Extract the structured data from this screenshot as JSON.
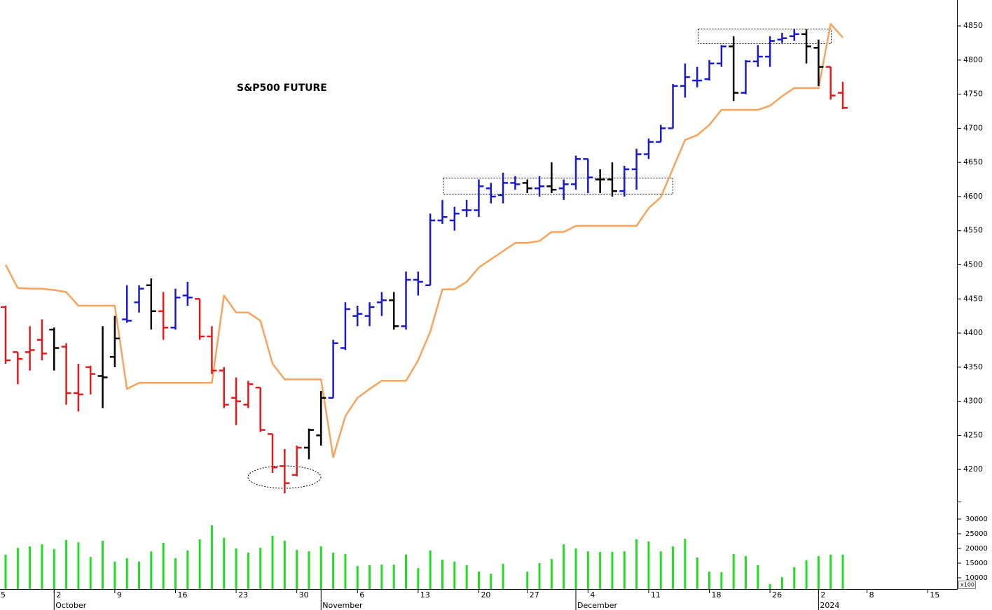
{
  "chart_data": {
    "type": "ohlc",
    "title": "S&P500 FUTURE",
    "x": [
      1,
      2,
      3,
      4,
      5,
      6,
      7,
      8,
      9,
      10,
      11,
      12,
      13,
      14,
      15,
      16,
      17,
      18,
      19,
      20,
      21,
      22,
      23,
      24,
      25,
      26,
      27,
      28,
      29,
      30,
      31,
      32,
      33,
      34,
      35,
      36,
      37,
      38,
      39,
      40,
      41,
      42,
      43,
      44,
      45,
      46,
      47,
      48,
      49,
      50,
      51,
      52,
      53,
      54,
      55,
      56,
      57,
      58,
      59,
      60,
      61,
      62,
      63,
      64,
      65,
      66,
      67,
      68,
      69,
      70
    ],
    "open": [
      4438,
      4372,
      4372,
      4390,
      4405,
      4380,
      4312,
      4350,
      4337,
      4365,
      4420,
      4445,
      4470,
      4432,
      4408,
      4455,
      4450,
      4395,
      4345,
      4305,
      4295,
      4320,
      4252,
      4205,
      4192,
      4232,
      4250,
      4305,
      4378,
      4425,
      4425,
      4445,
      4448,
      4410,
      4478,
      4470,
      4565,
      4565,
      4580,
      4580,
      4612,
      4602,
      4620,
      4620,
      4612,
      4615,
      4612,
      4618,
      4655,
      4625,
      4625,
      4608,
      4640,
      4662,
      4680,
      4700,
      4762,
      4770,
      4772,
      4795,
      4820,
      4752,
      4798,
      4805,
      4830,
      4835,
      4838,
      4818,
      4790,
      4752
    ],
    "high": [
      4440,
      4372,
      4410,
      4420,
      4408,
      4385,
      4355,
      4352,
      4410,
      4425,
      4470,
      4470,
      4480,
      4460,
      4465,
      4475,
      4450,
      4410,
      4350,
      4335,
      4330,
      4320,
      4252,
      4230,
      4235,
      4260,
      4315,
      4390,
      4445,
      4440,
      4445,
      4460,
      4460,
      4490,
      4490,
      4575,
      4595,
      4585,
      4595,
      4625,
      4620,
      4635,
      4630,
      4625,
      4630,
      4650,
      4625,
      4660,
      4655,
      4640,
      4650,
      4645,
      4670,
      4685,
      4705,
      4765,
      4795,
      4790,
      4800,
      4822,
      4835,
      4800,
      4822,
      4835,
      4840,
      4845,
      4845,
      4830,
      4790,
      4768
    ],
    "low": [
      4355,
      4325,
      4345,
      4360,
      4345,
      4295,
      4285,
      4310,
      4290,
      4350,
      4415,
      4430,
      4405,
      4390,
      4405,
      4440,
      4390,
      4340,
      4290,
      4265,
      4290,
      4255,
      4195,
      4165,
      4190,
      4215,
      4235,
      4305,
      4375,
      4410,
      4410,
      4425,
      4405,
      4405,
      4455,
      4470,
      4560,
      4550,
      4570,
      4570,
      4590,
      4590,
      4610,
      4605,
      4600,
      4605,
      4595,
      4610,
      4605,
      4605,
      4600,
      4600,
      4610,
      4655,
      4680,
      4700,
      4745,
      4760,
      4770,
      4790,
      4740,
      4750,
      4790,
      4790,
      4825,
      4828,
      4795,
      4762,
      4742,
      4728
    ],
    "close": [
      4360,
      4362,
      4375,
      4370,
      4378,
      4312,
      4310,
      4340,
      4335,
      4392,
      4418,
      4465,
      4432,
      4408,
      4452,
      4452,
      4395,
      4345,
      4295,
      4300,
      4325,
      4258,
      4203,
      4180,
      4232,
      4258,
      4305,
      4385,
      4435,
      4428,
      4438,
      4448,
      4410,
      4478,
      4475,
      4565,
      4570,
      4575,
      4580,
      4615,
      4600,
      4620,
      4618,
      4612,
      4615,
      4610,
      4618,
      4655,
      4628,
      4625,
      4608,
      4640,
      4662,
      4680,
      4700,
      4762,
      4775,
      4770,
      4795,
      4820,
      4752,
      4798,
      4805,
      4828,
      4832,
      4838,
      4820,
      4790,
      4748,
      4730
    ],
    "colors": [
      "#e31a1c",
      "#e31a1c",
      "#e31a1c",
      "#e31a1c",
      "#000000",
      "#e31a1c",
      "#e31a1c",
      "#e31a1c",
      "#000000",
      "#000000",
      "#1a1acd",
      "#1a1acd",
      "#000000",
      "#e31a1c",
      "#1a1acd",
      "#1a1acd",
      "#e31a1c",
      "#e31a1c",
      "#e31a1c",
      "#e31a1c",
      "#e31a1c",
      "#e31a1c",
      "#e31a1c",
      "#e31a1c",
      "#e31a1c",
      "#000000",
      "#000000",
      "#1a1acd",
      "#1a1acd",
      "#1a1acd",
      "#1a1acd",
      "#1a1acd",
      "#000000",
      "#1a1acd",
      "#1a1acd",
      "#1a1acd",
      "#1a1acd",
      "#1a1acd",
      "#1a1acd",
      "#1a1acd",
      "#1a1acd",
      "#1a1acd",
      "#1a1acd",
      "#000000",
      "#1a1acd",
      "#000000",
      "#1a1acd",
      "#1a1acd",
      "#1a1acd",
      "#000000",
      "#000000",
      "#1a1acd",
      "#1a1acd",
      "#1a1acd",
      "#1a1acd",
      "#1a1acd",
      "#1a1acd",
      "#1a1acd",
      "#1a1acd",
      "#1a1acd",
      "#000000",
      "#1a1acd",
      "#1a1acd",
      "#1a1acd",
      "#1a1acd",
      "#1a1acd",
      "#000000",
      "#000000",
      "#e31a1c",
      "#e31a1c"
    ],
    "stop": {
      "color": "#f7a35c",
      "values": [
        4500,
        4466,
        4465,
        4465,
        4463,
        4460,
        4440,
        4440,
        4440,
        4440,
        4318,
        4327,
        4327,
        4327,
        4327,
        4327,
        4327,
        4327,
        4455,
        4430,
        4430,
        4418,
        4355,
        4332,
        4332,
        4332,
        4332,
        4218,
        4278,
        4305,
        4318,
        4330,
        4330,
        4330,
        4360,
        4402,
        4464,
        4464,
        4475,
        4496,
        4508,
        4520,
        4532,
        4532,
        4535,
        4548,
        4548,
        4557,
        4557,
        4557,
        4557,
        4557,
        4557,
        4583,
        4599,
        4641,
        4683,
        4690,
        4705,
        4727,
        4727,
        4727,
        4727,
        4733,
        4747,
        4759,
        4759,
        4759,
        4853,
        4833
      ]
    },
    "xlim": [
      0.538,
      79.41
    ],
    "xticks": [
      {
        "value": 0,
        "label": "5"
      },
      {
        "value": 5,
        "label": "2"
      },
      {
        "value": 10,
        "label": "9"
      },
      {
        "value": 15,
        "label": "16"
      },
      {
        "value": 20,
        "label": "23"
      },
      {
        "value": 25,
        "label": "30"
      },
      {
        "value": 30,
        "label": "6"
      },
      {
        "value": 35,
        "label": "13"
      },
      {
        "value": 40,
        "label": "20"
      },
      {
        "value": 44,
        "label": "27"
      },
      {
        "value": 49,
        "label": "4"
      },
      {
        "value": 54,
        "label": "11"
      },
      {
        "value": 59,
        "label": "18"
      },
      {
        "value": 64,
        "label": "26"
      },
      {
        "value": 68,
        "label": "2"
      },
      {
        "value": 72,
        "label": "8"
      },
      {
        "value": 77,
        "label": "15"
      }
    ],
    "month_ticks": [
      {
        "value": 5,
        "label": "October"
      },
      {
        "value": 27,
        "label": "November"
      },
      {
        "value": 48,
        "label": "December"
      },
      {
        "value": 68,
        "label": "2024"
      }
    ],
    "ylim": [
      4153,
      4888
    ],
    "yticks": [
      4200,
      4250,
      4300,
      4350,
      4400,
      4450,
      4500,
      4550,
      4600,
      4650,
      4700,
      4750,
      4800,
      4850
    ],
    "volume": {
      "color": "#22dd22",
      "unit_label": "x100",
      "values": [
        17900,
        20200,
        20700,
        21400,
        19800,
        22900,
        22100,
        17100,
        22600,
        15500,
        16700,
        15500,
        19000,
        21900,
        16700,
        19300,
        23100,
        27900,
        23600,
        20000,
        18600,
        20200,
        24300,
        22600,
        19500,
        19000,
        20700,
        18600,
        18100,
        14000,
        14300,
        14500,
        14500,
        17900,
        13300,
        19300,
        16200,
        15500,
        14300,
        12100,
        11400,
        14800,
        null,
        12100,
        15000,
        16400,
        21400,
        20000,
        19000,
        18800,
        18800,
        19000,
        23100,
        22400,
        19000,
        20700,
        23300,
        16900,
        12100,
        11900,
        18100,
        17400,
        14300,
        7900,
        10200,
        13600,
        16000,
        17400,
        17900,
        17900
      ],
      "ylim": [
        6190,
        35240
      ],
      "yticks": [
        10000,
        15000,
        20000,
        25000,
        30000
      ]
    }
  }
}
